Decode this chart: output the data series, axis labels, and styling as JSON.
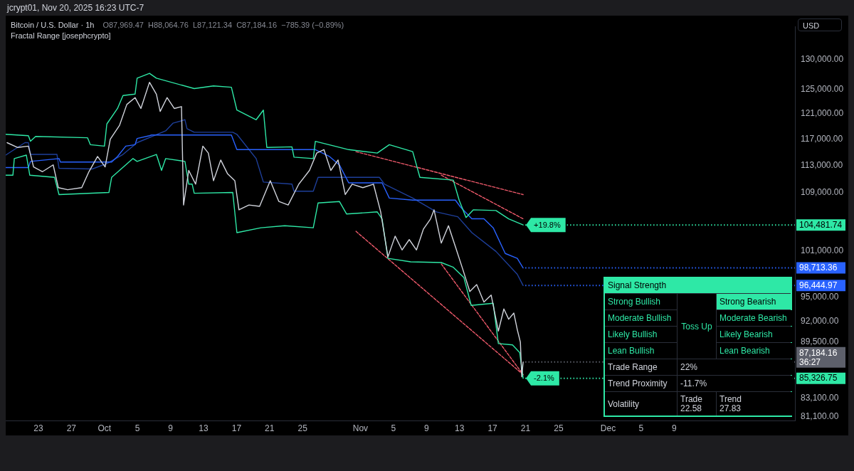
{
  "chart_data": [
    {
      "type": "line",
      "title": "Bitcoin / U.S. Dollar · 1h",
      "subtitle": "O87,969.47  H88,064.76  L87,121.34  C87,184.16  −785.39 (−0.89%)",
      "ylabel": "USD",
      "log": true,
      "xlim": [
        "2025-09-19T01:00",
        "2025-12-23T15:00"
      ],
      "ylim": [
        80700,
        135800
      ],
      "xticks": [
        {
          "value": "2025-09-23",
          "label": "23"
        },
        {
          "value": "2025-09-27",
          "label": "27"
        },
        {
          "value": "2025-10-01",
          "label": "Oct"
        },
        {
          "value": "2025-10-05",
          "label": "5"
        },
        {
          "value": "2025-10-09",
          "label": "9"
        },
        {
          "value": "2025-10-13",
          "label": "13"
        },
        {
          "value": "2025-10-17",
          "label": "17"
        },
        {
          "value": "2025-10-21",
          "label": "21"
        },
        {
          "value": "2025-10-25",
          "label": "25"
        },
        {
          "value": "2025-11-01",
          "label": "Nov"
        },
        {
          "value": "2025-11-05",
          "label": "5"
        },
        {
          "value": "2025-11-09",
          "label": "9"
        },
        {
          "value": "2025-11-13",
          "label": "13"
        },
        {
          "value": "2025-11-17",
          "label": "17"
        },
        {
          "value": "2025-11-21",
          "label": "21"
        },
        {
          "value": "2025-11-25",
          "label": "25"
        },
        {
          "value": "2025-12-01",
          "label": "Dec"
        },
        {
          "value": "2025-12-05",
          "label": "5"
        },
        {
          "value": "2025-12-09",
          "label": "9"
        }
      ],
      "yticks": [
        {
          "value": 130000,
          "label": "130,000.00"
        },
        {
          "value": 125000,
          "label": "125,000.00"
        },
        {
          "value": 121000,
          "label": "121,000.00"
        },
        {
          "value": 117000,
          "label": "117,000.00"
        },
        {
          "value": 113000,
          "label": "113,000.00"
        },
        {
          "value": 109000,
          "label": "109,000.00"
        },
        {
          "value": 101000,
          "label": "101,000.00"
        },
        {
          "value": 95000,
          "label": "95,000.00"
        },
        {
          "value": 92000,
          "label": "92,000.00"
        },
        {
          "value": 89500,
          "label": "89,500.00"
        },
        {
          "value": 83100,
          "label": "83,100.00"
        },
        {
          "value": 81100,
          "label": "81,100.00"
        }
      ],
      "series": [
        {
          "type": "line",
          "color": "#d1d4dc",
          "x": [
            "2025-09-19T05:00",
            "2025-09-20T12:00",
            "2025-09-21T19:00",
            "2025-09-22T10:00",
            "2025-09-23T12:00",
            "2025-09-24T19:00",
            "2025-09-25T10:00",
            "2025-09-26T13:00",
            "2025-09-28T06:00",
            "2025-09-29T03:00",
            "2025-09-30T04:00",
            "2025-10-01T02:00",
            "2025-10-01T17:00",
            "2025-10-02T20:00",
            "2025-10-03T17:00",
            "2025-10-04T17:00",
            "2025-10-05T10:00",
            "2025-10-06T11:00",
            "2025-10-07T07:00",
            "2025-10-07T18:00",
            "2025-10-08T14:00",
            "2025-10-09T11:00",
            "2025-10-10T08:00",
            "2025-10-10T14:00",
            "2025-10-11T05:00",
            "2025-10-12T01:00",
            "2025-10-12T22:00",
            "2025-10-13T14:00",
            "2025-10-14T05:00",
            "2025-10-15T02:00",
            "2025-10-15T22:00",
            "2025-10-16T19:00",
            "2025-10-17T07:00",
            "2025-10-18T12:00",
            "2025-10-19T19:00",
            "2025-10-21T02:00",
            "2025-10-22T03:00",
            "2025-10-23T06:00",
            "2025-10-24T13:00",
            "2025-10-25T20:00",
            "2025-10-26T17:00",
            "2025-10-27T14:00",
            "2025-10-28T10:00",
            "2025-10-29T07:00",
            "2025-10-30T04:00",
            "2025-10-31T00:00",
            "2025-11-01T07:00",
            "2025-11-02T14:00",
            "2025-11-03T11:00",
            "2025-11-04T08:00",
            "2025-11-05T05:00",
            "2025-11-06T01:00",
            "2025-11-06T22:00",
            "2025-11-07T19:00",
            "2025-11-08T15:00",
            "2025-11-09T12:00",
            "2025-11-09T22:00",
            "2025-11-10T19:00",
            "2025-11-11T16:00",
            "2025-11-12T12:00",
            "2025-11-13T09:00",
            "2025-11-14T06:00",
            "2025-11-15T02:00",
            "2025-11-15T23:00",
            "2025-11-16T20:00",
            "2025-11-17T17:00",
            "2025-11-18T09:00",
            "2025-11-18T23:00",
            "2025-11-19T14:00",
            "2025-11-20T00:00",
            "2025-11-20T09:00",
            "2025-11-20T13:00",
            "2025-11-20T17:00"
          ],
          "values": [
            116480,
            115740,
            115950,
            112810,
            112100,
            113110,
            109760,
            109460,
            109760,
            112100,
            114370,
            112810,
            117010,
            119190,
            122500,
            123620,
            121860,
            126150,
            124190,
            121380,
            123620,
            121860,
            122160,
            107270,
            112290,
            110270,
            115950,
            114890,
            110770,
            113840,
            111780,
            110770,
            106590,
            107270,
            107080,
            110770,
            107770,
            107270,
            110270,
            112290,
            114890,
            115410,
            112290,
            113840,
            108760,
            110270,
            109760,
            110270,
            106300,
            100160,
            102950,
            101090,
            102480,
            101090,
            103890,
            105330,
            106590,
            102010,
            104370,
            101540,
            98620,
            95680,
            96560,
            94370,
            95240,
            90820,
            93510,
            92250,
            93000,
            90990,
            89500,
            85490,
            87184.16
          ]
        },
        {
          "type": "line",
          "color": "#2ee8a6",
          "x": [
            "2025-09-19T01:00",
            "2025-09-21T19:00",
            "2025-09-22T01:00",
            "2025-09-22T16:00",
            "2025-09-28T23:00",
            "2025-09-29T07:00",
            "2025-10-01T00:00",
            "2025-10-01T07:00",
            "2025-10-02T14:00",
            "2025-10-03T06:00",
            "2025-10-04T17:00",
            "2025-10-04T23:00",
            "2025-10-06T11:00",
            "2025-10-07T07:00",
            "2025-10-11T21:00",
            "2025-10-14T05:00",
            "2025-10-16T09:00",
            "2025-10-17T01:00",
            "2025-10-19T09:00",
            "2025-10-20T06:00",
            "2025-10-20T16:00",
            "2025-10-23T17:00",
            "2025-10-23T23:00",
            "2025-10-26T07:00",
            "2025-10-26T13:00",
            "2025-10-28T21:00",
            "2025-10-30T14:00",
            "2025-11-03T01:00",
            "2025-11-04T12:00",
            "2025-11-07T08:00",
            "2025-11-08T05:00",
            "2025-11-12T06:00",
            "2025-11-12T23:00",
            "2025-11-13T19:00",
            "2025-11-14T16:00",
            "2025-11-17T10:00",
            "2025-11-18T23:00",
            "2025-11-20T17:00"
          ],
          "values": [
            117770,
            117550,
            116690,
            117440,
            117230,
            116170,
            115950,
            119390,
            121860,
            123960,
            124190,
            126830,
            127650,
            126830,
            125100,
            125550,
            125330,
            121600,
            120060,
            121600,
            115740,
            115840,
            114270,
            114060,
            116690,
            115950,
            115410,
            114890,
            116170,
            115100,
            111270,
            110860,
            107970,
            105520,
            106590,
            106490,
            105330,
            104481.74
          ]
        },
        {
          "type": "line",
          "color": "#2ee8a6",
          "x": [
            "2025-09-19T01:00",
            "2025-09-19T22:00",
            "2025-09-20T02:00",
            "2025-09-21T13:00",
            "2025-09-21T23:00",
            "2025-09-24T23:00",
            "2025-09-25T12:00",
            "2025-10-01T13:00",
            "2025-10-01T21:00",
            "2025-10-04T11:00",
            "2025-10-04T23:00",
            "2025-10-07T07:00",
            "2025-10-07T22:00",
            "2025-10-08T10:00",
            "2025-10-10T18:00",
            "2025-10-11T05:00",
            "2025-10-11T15:00",
            "2025-10-11T21:00",
            "2025-10-16T13:00",
            "2025-10-17T01:00",
            "2025-10-19T23:00",
            "2025-10-22T20:00",
            "2025-10-26T07:00",
            "2025-10-26T21:00",
            "2025-10-29T11:00",
            "2025-10-30T08:00",
            "2025-11-03T01:00",
            "2025-11-03T15:00",
            "2025-11-04T08:00",
            "2025-11-07T02:00",
            "2025-11-10T19:00",
            "2025-11-12T06:00",
            "2025-11-13T13:00",
            "2025-11-14T10:00",
            "2025-11-17T02:00",
            "2025-11-17T17:00",
            "2025-11-19T10:00",
            "2025-11-20T07:00",
            "2025-11-20T17:00"
          ],
          "values": [
            111580,
            111580,
            114060,
            114580,
            111580,
            111270,
            108760,
            109060,
            111270,
            114060,
            113630,
            114680,
            112290,
            114060,
            113630,
            110270,
            110270,
            108950,
            109060,
            103420,
            104090,
            104370,
            104090,
            107570,
            107770,
            106000,
            106300,
            105330,
            99970,
            99520,
            99420,
            98800,
            97450,
            93950,
            94210,
            89330,
            89170,
            88280,
            85326.75
          ]
        },
        {
          "type": "line",
          "color": "#2962ff",
          "x": [
            "2025-09-19T01:00",
            "2025-09-21T19:00",
            "2025-09-22T01:00",
            "2025-09-25T12:00",
            "2025-09-25T16:00",
            "2025-10-01T21:00",
            "2025-10-02T14:00",
            "2025-10-03T14:00",
            "2025-10-04T17:00",
            "2025-10-04T23:00",
            "2025-10-06T11:00",
            "2025-10-06T17:00",
            "2025-10-16T09:00",
            "2025-10-17T01:00",
            "2025-10-26T13:00",
            "2025-10-28T06:00",
            "2025-10-29T11:00",
            "2025-10-30T14:00",
            "2025-11-03T15:00",
            "2025-11-04T12:00",
            "2025-11-07T08:00",
            "2025-11-12T12:00",
            "2025-11-13T03:00",
            "2025-11-14T12:00",
            "2025-11-15T23:00",
            "2025-11-17T02:00",
            "2025-11-18T13:00",
            "2025-11-20T00:00",
            "2025-11-20T17:00"
          ],
          "values": [
            112710,
            112710,
            113630,
            114060,
            113540,
            113540,
            114370,
            115950,
            116170,
            117130,
            117550,
            117660,
            117660,
            115410,
            115410,
            114370,
            113110,
            110460,
            110460,
            108260,
            107970,
            107970,
            106980,
            105330,
            105330,
            104090,
            100620,
            99970,
            98713.36
          ]
        },
        {
          "type": "line",
          "color": "#1e3f9a",
          "x": [
            "2025-09-19T01:00",
            "2025-09-21T09:00",
            "2025-09-21T19:00",
            "2025-09-22T01:00",
            "2025-09-25T06:00",
            "2025-09-25T12:00",
            "2025-09-29T13:00",
            "2025-10-01T07:00",
            "2025-10-03T06:00",
            "2025-10-04T23:00",
            "2025-10-08T10:00",
            "2025-10-09T07:00",
            "2025-10-10T18:00",
            "2025-10-11T00:00",
            "2025-10-11T21:00",
            "2025-10-16T13:00",
            "2025-10-17T01:00",
            "2025-10-19T09:00",
            "2025-10-20T06:00",
            "2025-10-23T17:00",
            "2025-10-23T23:00",
            "2025-10-26T07:00",
            "2025-10-26T21:00",
            "2025-11-03T07:00",
            "2025-11-03T22:00",
            "2025-11-07T08:00",
            "2025-11-10T05:00",
            "2025-11-12T19:00",
            "2025-11-14T12:00",
            "2025-11-17T10:00",
            "2025-11-20T00:00",
            "2025-11-20T17:00"
          ],
          "values": [
            114580,
            116480,
            116480,
            114680,
            114680,
            112610,
            112500,
            113320,
            114680,
            116480,
            118310,
            119510,
            120060,
            118640,
            118090,
            118090,
            117770,
            114060,
            110570,
            110270,
            109250,
            109250,
            111270,
            111270,
            110270,
            108260,
            106300,
            105620,
            103420,
            100890,
            97890,
            96444.97
          ]
        },
        {
          "type": "line",
          "color": "#f05a6b",
          "line_style": "dashed",
          "x": [
            "2025-10-31T11:00",
            "2025-11-20T17:00"
          ],
          "values": [
            115100,
            108760
          ]
        },
        {
          "type": "line",
          "color": "#f05a6b",
          "line_style": "dashed",
          "x": [
            "2025-11-10T19:00",
            "2025-11-20T17:00"
          ],
          "values": [
            111580,
            105330
          ]
        },
        {
          "type": "line",
          "color": "#f05a6b",
          "line_style": "dashed",
          "x": [
            "2025-10-31T11:00",
            "2025-11-20T17:00"
          ],
          "values": [
            103610,
            85740
          ]
        },
        {
          "type": "line",
          "color": "#f05a6b",
          "line_style": "dashed",
          "x": [
            "2025-11-10T19:00",
            "2025-11-20T17:00"
          ],
          "values": [
            99240,
            85740
          ]
        }
      ],
      "ref_lines": [
        {
          "axis": "y",
          "value": 104481.74,
          "label": "104,481.74",
          "color": "#2ee8a6",
          "line_style": "dotted"
        },
        {
          "axis": "y",
          "value": 98713.36,
          "label": "98,713.36",
          "color": "#2962ff",
          "line_style": "dotted"
        },
        {
          "axis": "y",
          "value": 96444.97,
          "label": "96,444.97",
          "color": "#2962ff",
          "line_style": "dotted"
        },
        {
          "axis": "y",
          "value": 87184.16,
          "label": "87,184.16\n36:27",
          "color": "#5d606b",
          "line_style": "dotted"
        },
        {
          "axis": "y",
          "value": 85326.75,
          "label": "85,326.75",
          "color": "#2ee8a6",
          "line_style": "dotted"
        }
      ],
      "annotations": [
        "jcrypt01, Nov 20, 2025 16:23 UTC-7",
        "Fractal Range [josephcrypto]",
        {
          "text": "+19.8%",
          "x": "2025-11-20T17:00",
          "y": 104481.74
        },
        {
          "text": "-2.1%",
          "x": "2025-11-20T17:00",
          "y": 85326.75
        }
      ]
    },
    {
      "type": "other",
      "title": "Signal Strength",
      "annotations": [
        "Strong Bullish",
        "Toss Up",
        "Strong Bearish",
        "Moderate Bullish",
        "Moderate Bearish",
        "Likely Bullish",
        "Likely Bearish",
        "Lean Bullish",
        "Lean Bearish",
        "Trade Range",
        "22%",
        "Trend Proximity",
        "-11.7%",
        "Volatility",
        "Trade",
        "22.58",
        "Trend",
        "27.83"
      ]
    }
  ]
}
